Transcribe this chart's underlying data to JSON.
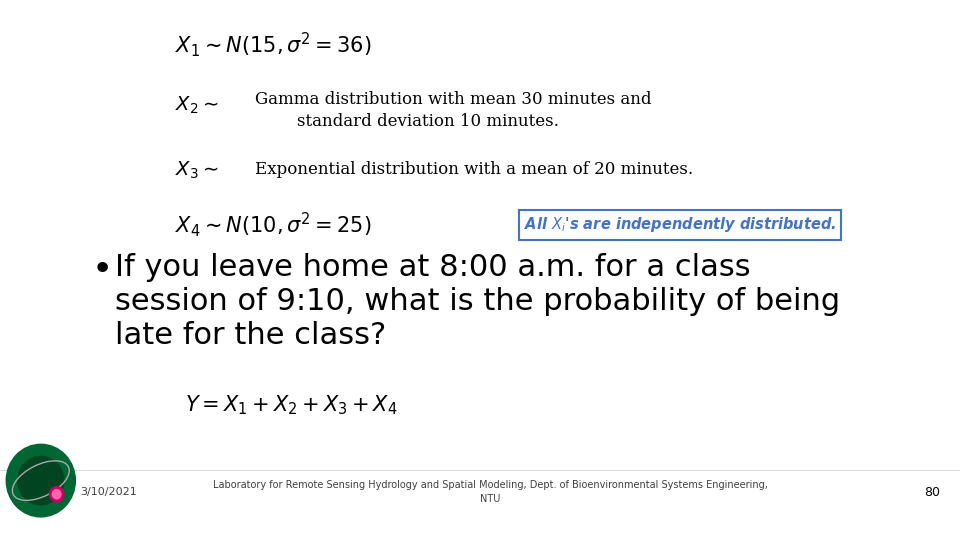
{
  "bg_color": "#ffffff",
  "eq1": "$X_1 \\sim N(15,\\sigma^2 = 36)$",
  "x2_label": "$X_2 \\sim$",
  "x2_line1": "Gamma distribution with mean 30 minutes and",
  "x2_line2": "        standard deviation 10 minutes.",
  "x3_label": "$X_3 \\sim$",
  "x3_text": "Exponential distribution with a mean of 20 minutes.",
  "eq4_label": "$X_4 \\sim N(10,\\sigma^2 = 25)$",
  "box_text": "All $X_i$'s are independently distributed.",
  "bullet": "•",
  "bullet_line1": "If you leave home at 8:00 a.m. for a class",
  "bullet_line2": "session of 9:10, what is the probability of being",
  "bullet_line3": "late for the class?",
  "eq_Y": "$Y = X_1 + X_2 + X_3 + X_4$",
  "footer_text": "Laboratory for Remote Sensing Hydrology and Spatial Modeling, Dept. of Bioenvironmental Systems Engineering,\nNTU",
  "date_text": "3/10/2021",
  "page_num": "80",
  "box_edge_color": "#4472c4",
  "box_text_color": "#4472c4",
  "text_color": "#000000",
  "footer_color": "#404040",
  "logo_outer": "#006633",
  "logo_inner": "#004422",
  "logo_dot": "#cc0066",
  "logo_orbit": "#cccccc"
}
